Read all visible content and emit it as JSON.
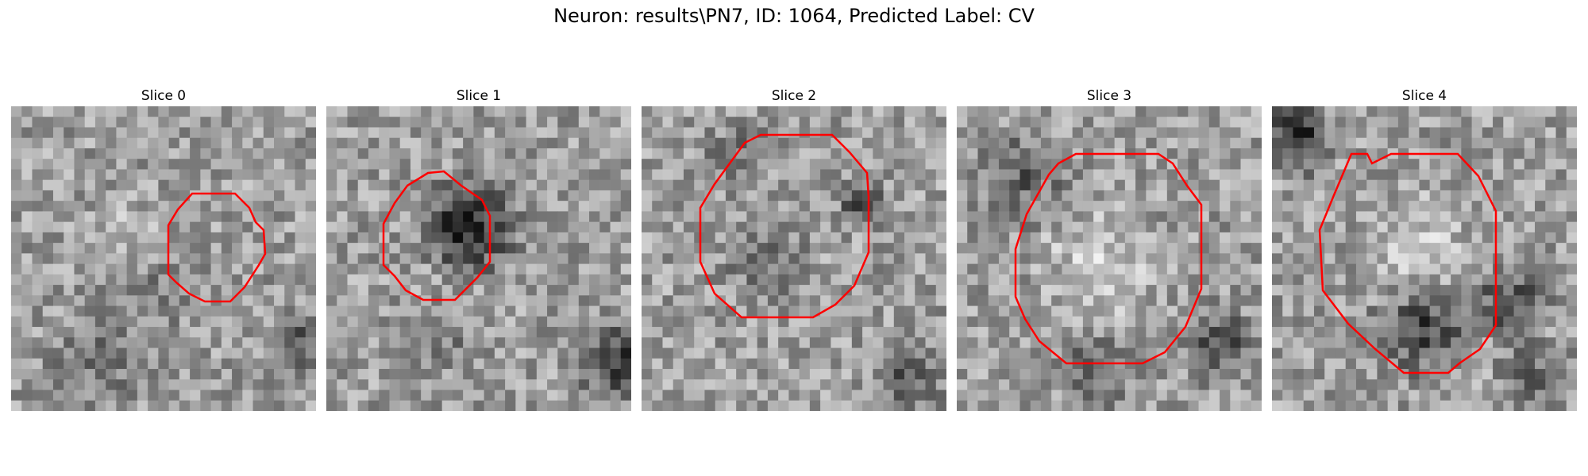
{
  "figure": {
    "title": "Neuron: results\\PN7, ID: 1064, Predicted Label: CV",
    "contour_color": "#ff0000"
  },
  "panels": [
    {
      "title": "Slice 0"
    },
    {
      "title": "Slice 1"
    },
    {
      "title": "Slice 2"
    },
    {
      "title": "Slice 3"
    },
    {
      "title": "Slice 4"
    }
  ]
}
